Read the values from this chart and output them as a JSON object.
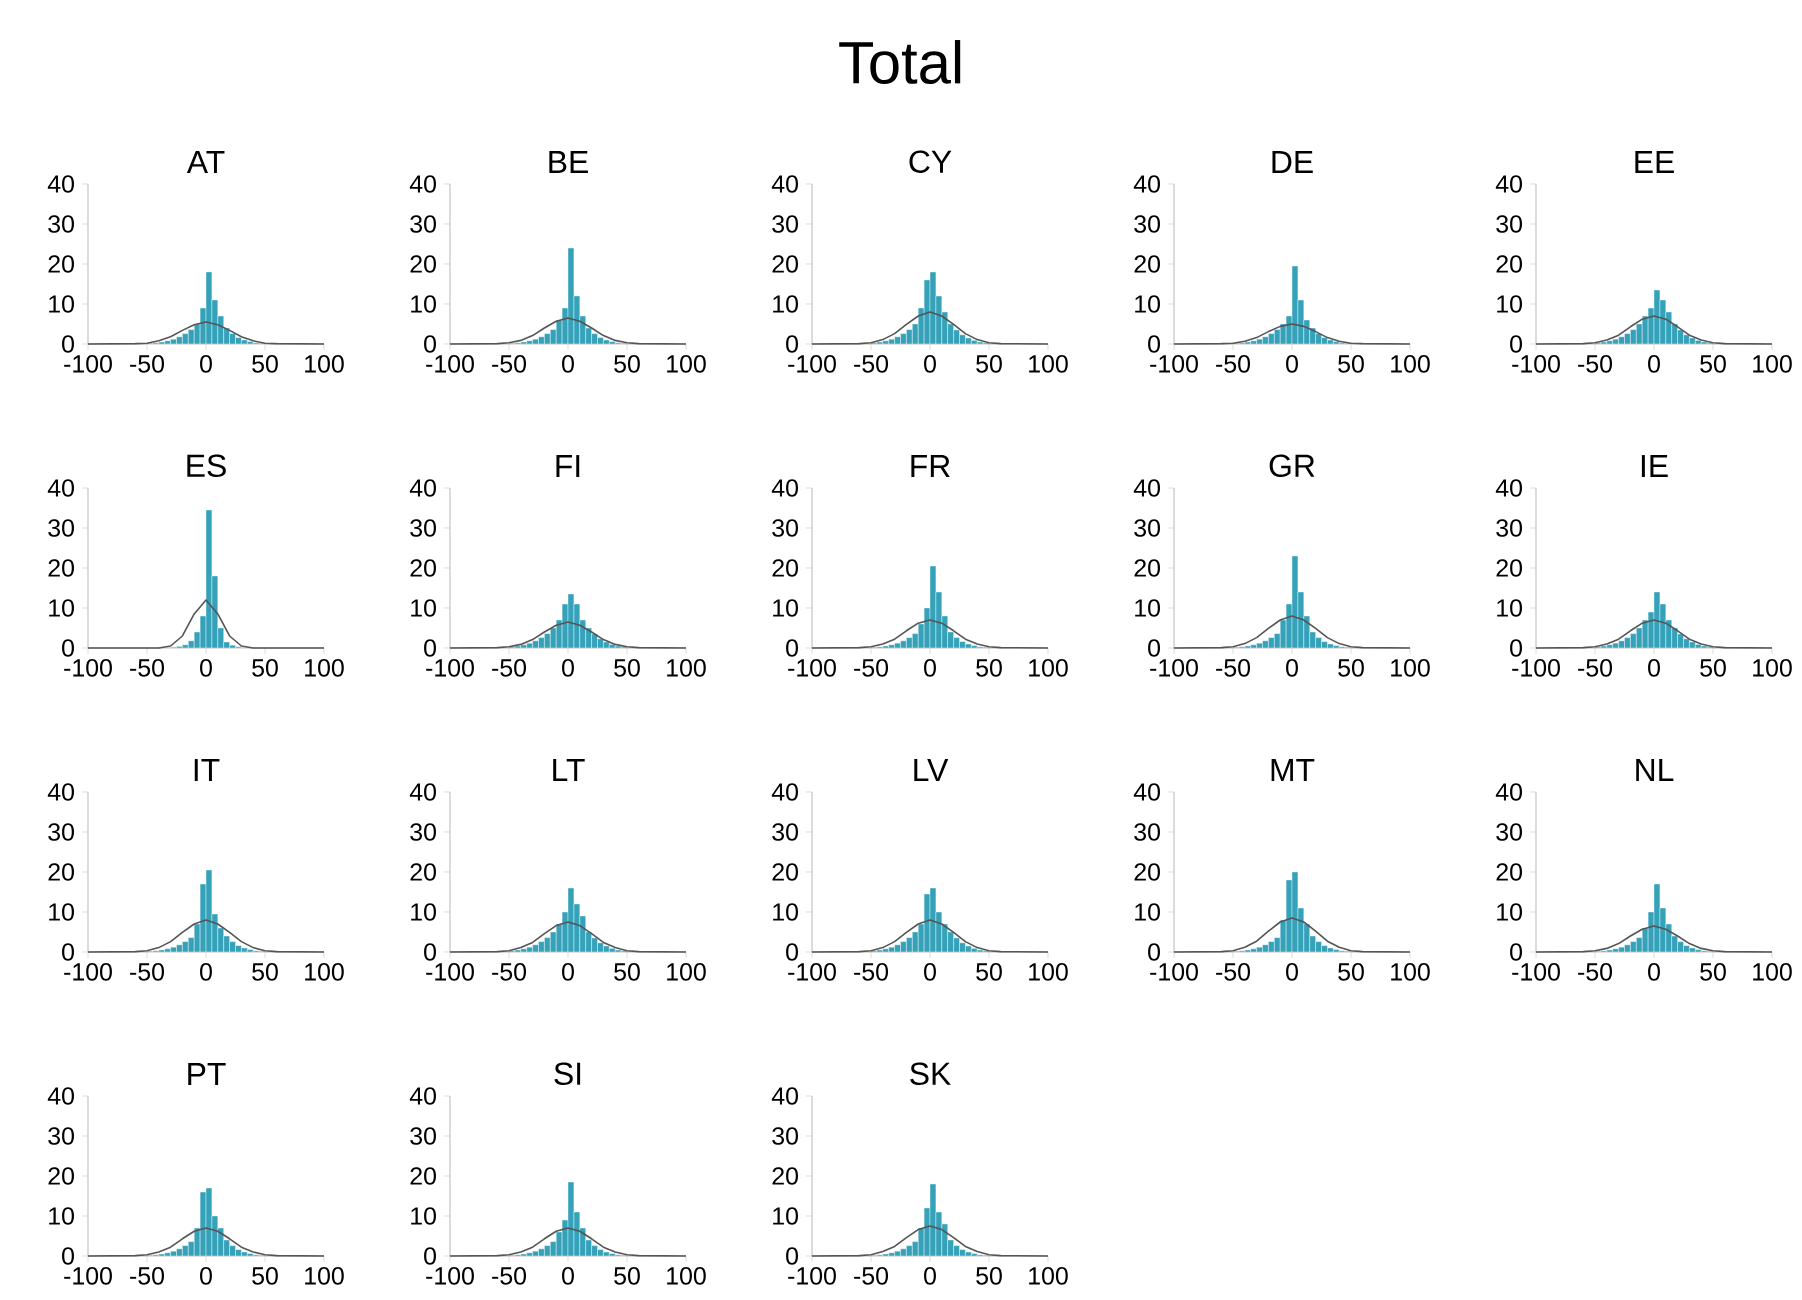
{
  "chart_data": [
    {
      "type": "other",
      "title": "Total"
    },
    {
      "type": "histogram",
      "title": "AT",
      "xlim": [
        -100,
        100
      ],
      "ylim": [
        0,
        40
      ],
      "xticks": [
        -100,
        -50,
        0,
        50,
        100
      ],
      "yticks": [
        0,
        10,
        20,
        30,
        40
      ],
      "series": [
        {
          "type": "histogram",
          "color": "#35a2ba",
          "bins": [
            -50,
            -45,
            -40,
            -35,
            -30,
            -25,
            -20,
            -15,
            -10,
            -5,
            0,
            5,
            10,
            15,
            20,
            25,
            30,
            35,
            40,
            45,
            50
          ],
          "values": [
            0.2,
            0.3,
            0.5,
            0.8,
            1.2,
            1.8,
            2.6,
            3.6,
            5,
            9,
            18,
            11,
            7,
            4,
            2.6,
            1.6,
            1,
            0.6,
            0.3,
            0.2
          ]
        },
        {
          "type": "line",
          "color": "#555555",
          "x": [
            -100,
            -60,
            -50,
            -40,
            -30,
            -20,
            -10,
            0,
            10,
            20,
            30,
            40,
            50,
            60,
            100
          ],
          "values": [
            0,
            0.1,
            0.2,
            0.8,
            1.8,
            3.4,
            4.8,
            5.5,
            4.8,
            3.4,
            1.8,
            0.8,
            0.2,
            0.1,
            0
          ]
        }
      ]
    },
    {
      "type": "histogram",
      "title": "BE",
      "xlim": [
        -100,
        100
      ],
      "ylim": [
        0,
        40
      ],
      "xticks": [
        -100,
        -50,
        0,
        50,
        100
      ],
      "yticks": [
        0,
        10,
        20,
        30,
        40
      ],
      "series": [
        {
          "type": "histogram",
          "color": "#35a2ba",
          "bins": [
            -50,
            -45,
            -40,
            -35,
            -30,
            -25,
            -20,
            -15,
            -10,
            -5,
            0,
            5,
            10,
            15,
            20,
            25,
            30,
            35,
            40,
            45,
            50
          ],
          "values": [
            0.2,
            0.3,
            0.5,
            0.8,
            1.2,
            1.8,
            2.6,
            3.6,
            6,
            9,
            24,
            12,
            7,
            4,
            2.6,
            1.6,
            1,
            0.6,
            0.3,
            0.2
          ]
        },
        {
          "type": "line",
          "color": "#555555",
          "x": [
            -100,
            -60,
            -50,
            -40,
            -30,
            -20,
            -10,
            0,
            10,
            20,
            30,
            40,
            50,
            60,
            100
          ],
          "values": [
            0,
            0.1,
            0.3,
            0.9,
            2.1,
            4.0,
            5.7,
            6.5,
            5.7,
            4.0,
            2.1,
            0.9,
            0.3,
            0.1,
            0
          ]
        }
      ]
    },
    {
      "type": "histogram",
      "title": "CY",
      "xlim": [
        -100,
        100
      ],
      "ylim": [
        0,
        40
      ],
      "xticks": [
        -100,
        -50,
        0,
        50,
        100
      ],
      "yticks": [
        0,
        10,
        20,
        30,
        40
      ],
      "series": [
        {
          "type": "histogram",
          "color": "#35a2ba",
          "bins": [
            -50,
            -45,
            -40,
            -35,
            -30,
            -25,
            -20,
            -15,
            -10,
            -5,
            0,
            5,
            10,
            15,
            20,
            25,
            30,
            35,
            40,
            45,
            50
          ],
          "values": [
            0.3,
            0.5,
            0.8,
            1.2,
            1.8,
            2.6,
            3.6,
            5,
            9,
            16,
            18,
            12,
            8,
            5,
            3.5,
            2.3,
            1.5,
            0.9,
            0.5,
            0.3
          ]
        },
        {
          "type": "line",
          "color": "#555555",
          "x": [
            -100,
            -60,
            -50,
            -40,
            -30,
            -20,
            -10,
            0,
            10,
            20,
            30,
            40,
            50,
            60,
            100
          ],
          "values": [
            0,
            0.1,
            0.3,
            1.1,
            2.6,
            4.9,
            7.0,
            8,
            7.0,
            4.9,
            2.6,
            1.1,
            0.3,
            0.1,
            0
          ]
        }
      ]
    },
    {
      "type": "histogram",
      "title": "DE",
      "xlim": [
        -100,
        100
      ],
      "ylim": [
        0,
        40
      ],
      "xticks": [
        -100,
        -50,
        0,
        50,
        100
      ],
      "yticks": [
        0,
        10,
        20,
        30,
        40
      ],
      "series": [
        {
          "type": "histogram",
          "color": "#35a2ba",
          "bins": [
            -50,
            -45,
            -40,
            -35,
            -30,
            -25,
            -20,
            -15,
            -10,
            -5,
            0,
            5,
            10,
            15,
            20,
            25,
            30,
            35,
            40,
            45,
            50
          ],
          "values": [
            0.2,
            0.3,
            0.5,
            0.8,
            1.2,
            1.8,
            2.6,
            3.6,
            5,
            7,
            19.5,
            11,
            6,
            4,
            2.6,
            1.6,
            1,
            0.6,
            0.3,
            0.2
          ]
        },
        {
          "type": "line",
          "color": "#555555",
          "x": [
            -100,
            -60,
            -50,
            -40,
            -30,
            -20,
            -10,
            0,
            10,
            20,
            30,
            40,
            50,
            60,
            100
          ],
          "values": [
            0,
            0.1,
            0.2,
            0.7,
            1.6,
            3.1,
            4.4,
            5,
            4.4,
            3.1,
            1.6,
            0.7,
            0.2,
            0.1,
            0
          ]
        }
      ]
    },
    {
      "type": "histogram",
      "title": "EE",
      "xlim": [
        -100,
        100
      ],
      "ylim": [
        0,
        40
      ],
      "xticks": [
        -100,
        -50,
        0,
        50,
        100
      ],
      "yticks": [
        0,
        10,
        20,
        30,
        40
      ],
      "series": [
        {
          "type": "histogram",
          "color": "#35a2ba",
          "bins": [
            -50,
            -45,
            -40,
            -35,
            -30,
            -25,
            -20,
            -15,
            -10,
            -5,
            0,
            5,
            10,
            15,
            20,
            25,
            30,
            35,
            40,
            45,
            50
          ],
          "values": [
            0.3,
            0.5,
            0.8,
            1.2,
            1.8,
            2.6,
            3.6,
            5,
            7,
            9,
            13.5,
            11,
            8,
            5,
            3.5,
            2.3,
            1.5,
            0.9,
            0.5,
            0.3
          ]
        },
        {
          "type": "line",
          "color": "#555555",
          "x": [
            -100,
            -60,
            -50,
            -40,
            -30,
            -20,
            -10,
            0,
            10,
            20,
            30,
            40,
            50,
            60,
            100
          ],
          "values": [
            0,
            0.1,
            0.3,
            1.0,
            2.2,
            4.3,
            6.2,
            7,
            6.2,
            4.3,
            2.2,
            1.0,
            0.3,
            0.1,
            0
          ]
        }
      ]
    },
    {
      "type": "histogram",
      "title": "ES",
      "xlim": [
        -100,
        100
      ],
      "ylim": [
        0,
        40
      ],
      "xticks": [
        -100,
        -50,
        0,
        50,
        100
      ],
      "yticks": [
        0,
        10,
        20,
        30,
        40
      ],
      "series": [
        {
          "type": "histogram",
          "color": "#35a2ba",
          "bins": [
            -35,
            -30,
            -25,
            -20,
            -15,
            -10,
            -5,
            0,
            5,
            10,
            15,
            20,
            25,
            30,
            35
          ],
          "values": [
            0.1,
            0.2,
            0.4,
            0.8,
            1.8,
            4,
            8,
            34.5,
            18,
            5,
            1.5,
            0.7,
            0.3,
            0.1
          ]
        },
        {
          "type": "line",
          "color": "#555555",
          "x": [
            -100,
            -60,
            -50,
            -40,
            -30,
            -20,
            -10,
            0,
            10,
            20,
            30,
            40,
            50,
            60,
            100
          ],
          "values": [
            0,
            0,
            0,
            0,
            0.5,
            3,
            8.5,
            12,
            8.5,
            3,
            0.5,
            0,
            0,
            0,
            0
          ]
        }
      ]
    },
    {
      "type": "histogram",
      "title": "FI",
      "xlim": [
        -100,
        100
      ],
      "ylim": [
        0,
        40
      ],
      "xticks": [
        -100,
        -50,
        0,
        50,
        100
      ],
      "yticks": [
        0,
        10,
        20,
        30,
        40
      ],
      "series": [
        {
          "type": "histogram",
          "color": "#35a2ba",
          "bins": [
            -50,
            -45,
            -40,
            -35,
            -30,
            -25,
            -20,
            -15,
            -10,
            -5,
            0,
            5,
            10,
            15,
            20,
            25,
            30,
            35,
            40,
            45,
            50
          ],
          "values": [
            0.3,
            0.5,
            0.8,
            1.2,
            1.8,
            2.6,
            3.6,
            5,
            7,
            11,
            13.5,
            11,
            7,
            5,
            3.5,
            2.3,
            1.5,
            0.9,
            0.5,
            0.3
          ]
        },
        {
          "type": "line",
          "color": "#555555",
          "x": [
            -100,
            -60,
            -50,
            -40,
            -30,
            -20,
            -10,
            0,
            10,
            20,
            30,
            40,
            50,
            60,
            100
          ],
          "values": [
            0,
            0.1,
            0.3,
            0.9,
            2.1,
            4.0,
            5.7,
            6.5,
            5.7,
            4.0,
            2.1,
            0.9,
            0.3,
            0.1,
            0
          ]
        }
      ]
    },
    {
      "type": "histogram",
      "title": "FR",
      "xlim": [
        -100,
        100
      ],
      "ylim": [
        0,
        40
      ],
      "xticks": [
        -100,
        -50,
        0,
        50,
        100
      ],
      "yticks": [
        0,
        10,
        20,
        30,
        40
      ],
      "series": [
        {
          "type": "histogram",
          "color": "#35a2ba",
          "bins": [
            -50,
            -45,
            -40,
            -35,
            -30,
            -25,
            -20,
            -15,
            -10,
            -5,
            0,
            5,
            10,
            15,
            20,
            25,
            30,
            35,
            40,
            45,
            50
          ],
          "values": [
            0.2,
            0.3,
            0.5,
            0.8,
            1.2,
            1.8,
            2.6,
            3.6,
            6,
            10,
            20.5,
            14,
            8,
            4,
            2.6,
            1.6,
            1,
            0.6,
            0.3,
            0.2
          ]
        },
        {
          "type": "line",
          "color": "#555555",
          "x": [
            -100,
            -60,
            -50,
            -40,
            -30,
            -20,
            -10,
            0,
            10,
            20,
            30,
            40,
            50,
            60,
            100
          ],
          "values": [
            0,
            0.1,
            0.3,
            1.0,
            2.2,
            4.3,
            6.2,
            7,
            6.2,
            4.3,
            2.2,
            1.0,
            0.3,
            0.1,
            0
          ]
        }
      ]
    },
    {
      "type": "histogram",
      "title": "GR",
      "xlim": [
        -100,
        100
      ],
      "ylim": [
        0,
        40
      ],
      "xticks": [
        -100,
        -50,
        0,
        50,
        100
      ],
      "yticks": [
        0,
        10,
        20,
        30,
        40
      ],
      "series": [
        {
          "type": "histogram",
          "color": "#35a2ba",
          "bins": [
            -50,
            -45,
            -40,
            -35,
            -30,
            -25,
            -20,
            -15,
            -10,
            -5,
            0,
            5,
            10,
            15,
            20,
            25,
            30,
            35,
            40,
            45,
            50
          ],
          "values": [
            0.2,
            0.3,
            0.5,
            0.8,
            1.2,
            1.8,
            2.6,
            3.6,
            7,
            11,
            23,
            14,
            8,
            4,
            2.6,
            1.6,
            1,
            0.6,
            0.3,
            0.2
          ]
        },
        {
          "type": "line",
          "color": "#555555",
          "x": [
            -100,
            -60,
            -50,
            -40,
            -30,
            -20,
            -10,
            0,
            10,
            20,
            30,
            40,
            50,
            60,
            100
          ],
          "values": [
            0,
            0.1,
            0.3,
            1.1,
            2.6,
            4.9,
            7.0,
            8,
            7.0,
            4.9,
            2.6,
            1.1,
            0.3,
            0.1,
            0
          ]
        }
      ]
    },
    {
      "type": "histogram",
      "title": "IE",
      "xlim": [
        -100,
        100
      ],
      "ylim": [
        0,
        40
      ],
      "xticks": [
        -100,
        -50,
        0,
        50,
        100
      ],
      "yticks": [
        0,
        10,
        20,
        30,
        40
      ],
      "series": [
        {
          "type": "histogram",
          "color": "#35a2ba",
          "bins": [
            -50,
            -45,
            -40,
            -35,
            -30,
            -25,
            -20,
            -15,
            -10,
            -5,
            0,
            5,
            10,
            15,
            20,
            25,
            30,
            35,
            40,
            45,
            50
          ],
          "values": [
            0.3,
            0.5,
            0.8,
            1.2,
            1.8,
            2.6,
            3.6,
            5,
            7,
            9,
            14,
            11,
            7,
            5,
            3.5,
            2.3,
            1.5,
            0.9,
            0.5,
            0.3
          ]
        },
        {
          "type": "line",
          "color": "#555555",
          "x": [
            -100,
            -60,
            -50,
            -40,
            -30,
            -20,
            -10,
            0,
            10,
            20,
            30,
            40,
            50,
            60,
            100
          ],
          "values": [
            0,
            0.1,
            0.3,
            1.0,
            2.2,
            4.3,
            6.2,
            7,
            6.2,
            4.3,
            2.2,
            1.0,
            0.3,
            0.1,
            0
          ]
        }
      ]
    },
    {
      "type": "histogram",
      "title": "IT",
      "xlim": [
        -100,
        100
      ],
      "ylim": [
        0,
        40
      ],
      "xticks": [
        -100,
        -50,
        0,
        50,
        100
      ],
      "yticks": [
        0,
        10,
        20,
        30,
        40
      ],
      "series": [
        {
          "type": "histogram",
          "color": "#35a2ba",
          "bins": [
            -50,
            -45,
            -40,
            -35,
            -30,
            -25,
            -20,
            -15,
            -10,
            -5,
            0,
            5,
            10,
            15,
            20,
            25,
            30,
            35,
            40,
            45,
            50
          ],
          "values": [
            0.2,
            0.3,
            0.5,
            0.8,
            1.2,
            1.8,
            2.6,
            3.6,
            7,
            17,
            20.5,
            9.5,
            6,
            4,
            2.6,
            1.6,
            1,
            0.6,
            0.3,
            0.2
          ]
        },
        {
          "type": "line",
          "color": "#555555",
          "x": [
            -100,
            -60,
            -50,
            -40,
            -30,
            -20,
            -10,
            0,
            10,
            20,
            30,
            40,
            50,
            60,
            100
          ],
          "values": [
            0,
            0.1,
            0.3,
            1.1,
            2.6,
            4.9,
            7.0,
            8,
            7.0,
            4.9,
            2.6,
            1.1,
            0.3,
            0.1,
            0
          ]
        }
      ]
    },
    {
      "type": "histogram",
      "title": "LT",
      "xlim": [
        -100,
        100
      ],
      "ylim": [
        0,
        40
      ],
      "xticks": [
        -100,
        -50,
        0,
        50,
        100
      ],
      "yticks": [
        0,
        10,
        20,
        30,
        40
      ],
      "series": [
        {
          "type": "histogram",
          "color": "#35a2ba",
          "bins": [
            -50,
            -45,
            -40,
            -35,
            -30,
            -25,
            -20,
            -15,
            -10,
            -5,
            0,
            5,
            10,
            15,
            20,
            25,
            30,
            35,
            40,
            45,
            50
          ],
          "values": [
            0.3,
            0.5,
            0.8,
            1.2,
            1.8,
            2.6,
            3.6,
            5,
            7,
            10,
            16,
            12,
            9,
            5,
            3.5,
            2.3,
            1.5,
            0.9,
            0.5,
            0.3
          ]
        },
        {
          "type": "line",
          "color": "#555555",
          "x": [
            -100,
            -60,
            -50,
            -40,
            -30,
            -20,
            -10,
            0,
            10,
            20,
            30,
            40,
            50,
            60,
            100
          ],
          "values": [
            0,
            0.1,
            0.3,
            1.1,
            2.4,
            4.6,
            6.6,
            7.5,
            6.6,
            4.6,
            2.4,
            1.1,
            0.3,
            0.1,
            0
          ]
        }
      ]
    },
    {
      "type": "histogram",
      "title": "LV",
      "xlim": [
        -100,
        100
      ],
      "ylim": [
        0,
        40
      ],
      "xticks": [
        -100,
        -50,
        0,
        50,
        100
      ],
      "yticks": [
        0,
        10,
        20,
        30,
        40
      ],
      "series": [
        {
          "type": "histogram",
          "color": "#35a2ba",
          "bins": [
            -50,
            -45,
            -40,
            -35,
            -30,
            -25,
            -20,
            -15,
            -10,
            -5,
            0,
            5,
            10,
            15,
            20,
            25,
            30,
            35,
            40,
            45,
            50
          ],
          "values": [
            0.3,
            0.5,
            0.8,
            1.2,
            1.8,
            2.6,
            3.6,
            5,
            7,
            14.5,
            16,
            10,
            7,
            5,
            3.5,
            2.3,
            1.5,
            0.9,
            0.5,
            0.3
          ]
        },
        {
          "type": "line",
          "color": "#555555",
          "x": [
            -100,
            -60,
            -50,
            -40,
            -30,
            -20,
            -10,
            0,
            10,
            20,
            30,
            40,
            50,
            60,
            100
          ],
          "values": [
            0,
            0.1,
            0.3,
            1.1,
            2.6,
            4.9,
            7.0,
            8,
            7.0,
            4.9,
            2.6,
            1.1,
            0.3,
            0.1,
            0
          ]
        }
      ]
    },
    {
      "type": "histogram",
      "title": "MT",
      "xlim": [
        -100,
        100
      ],
      "ylim": [
        0,
        40
      ],
      "xticks": [
        -100,
        -50,
        0,
        50,
        100
      ],
      "yticks": [
        0,
        10,
        20,
        30,
        40
      ],
      "series": [
        {
          "type": "histogram",
          "color": "#35a2ba",
          "bins": [
            -50,
            -45,
            -40,
            -35,
            -30,
            -25,
            -20,
            -15,
            -10,
            -5,
            0,
            5,
            10,
            15,
            20,
            25,
            30,
            35,
            40,
            45,
            50
          ],
          "values": [
            0.2,
            0.3,
            0.5,
            0.8,
            1.2,
            1.8,
            2.6,
            3.6,
            8,
            18,
            20,
            11,
            7,
            4,
            2.6,
            1.6,
            1,
            0.6,
            0.3,
            0.2
          ]
        },
        {
          "type": "line",
          "color": "#555555",
          "x": [
            -100,
            -60,
            -50,
            -40,
            -30,
            -20,
            -10,
            0,
            10,
            20,
            30,
            40,
            50,
            60,
            100
          ],
          "values": [
            0,
            0.1,
            0.3,
            1.2,
            2.7,
            5.2,
            7.5,
            8.5,
            7.5,
            5.2,
            2.7,
            1.2,
            0.3,
            0.1,
            0
          ]
        }
      ]
    },
    {
      "type": "histogram",
      "title": "NL",
      "xlim": [
        -100,
        100
      ],
      "ylim": [
        0,
        40
      ],
      "xticks": [
        -100,
        -50,
        0,
        50,
        100
      ],
      "yticks": [
        0,
        10,
        20,
        30,
        40
      ],
      "series": [
        {
          "type": "histogram",
          "color": "#35a2ba",
          "bins": [
            -50,
            -45,
            -40,
            -35,
            -30,
            -25,
            -20,
            -15,
            -10,
            -5,
            0,
            5,
            10,
            15,
            20,
            25,
            30,
            35,
            40,
            45,
            50
          ],
          "values": [
            0.2,
            0.3,
            0.5,
            0.8,
            1.2,
            1.8,
            2.6,
            3.6,
            6,
            10,
            17,
            11,
            7,
            4,
            2.6,
            1.6,
            1,
            0.6,
            0.3,
            0.2
          ]
        },
        {
          "type": "line",
          "color": "#555555",
          "x": [
            -100,
            -60,
            -50,
            -40,
            -30,
            -20,
            -10,
            0,
            10,
            20,
            30,
            40,
            50,
            60,
            100
          ],
          "values": [
            0,
            0.1,
            0.3,
            0.9,
            2.1,
            4.0,
            5.7,
            6.5,
            5.7,
            4.0,
            2.1,
            0.9,
            0.3,
            0.1,
            0
          ]
        }
      ]
    },
    {
      "type": "histogram",
      "title": "PT",
      "xlim": [
        -100,
        100
      ],
      "ylim": [
        0,
        40
      ],
      "xticks": [
        -100,
        -50,
        0,
        50,
        100
      ],
      "yticks": [
        0,
        10,
        20,
        30,
        40
      ],
      "series": [
        {
          "type": "histogram",
          "color": "#35a2ba",
          "bins": [
            -50,
            -45,
            -40,
            -35,
            -30,
            -25,
            -20,
            -15,
            -10,
            -5,
            0,
            5,
            10,
            15,
            20,
            25,
            30,
            35,
            40,
            45,
            50
          ],
          "values": [
            0.2,
            0.3,
            0.5,
            0.8,
            1.2,
            1.8,
            2.6,
            3.6,
            7,
            16,
            17,
            10,
            7,
            4,
            2.6,
            1.6,
            1,
            0.6,
            0.3,
            0.2
          ]
        },
        {
          "type": "line",
          "color": "#555555",
          "x": [
            -100,
            -60,
            -50,
            -40,
            -30,
            -20,
            -10,
            0,
            10,
            20,
            30,
            40,
            50,
            60,
            100
          ],
          "values": [
            0,
            0.1,
            0.3,
            1.0,
            2.2,
            4.3,
            6.2,
            7,
            6.2,
            4.3,
            2.2,
            1.0,
            0.3,
            0.1,
            0
          ]
        }
      ]
    },
    {
      "type": "histogram",
      "title": "SI",
      "xlim": [
        -100,
        100
      ],
      "ylim": [
        0,
        40
      ],
      "xticks": [
        -100,
        -50,
        0,
        50,
        100
      ],
      "yticks": [
        0,
        10,
        20,
        30,
        40
      ],
      "series": [
        {
          "type": "histogram",
          "color": "#35a2ba",
          "bins": [
            -50,
            -45,
            -40,
            -35,
            -30,
            -25,
            -20,
            -15,
            -10,
            -5,
            0,
            5,
            10,
            15,
            20,
            25,
            30,
            35,
            40,
            45,
            50
          ],
          "values": [
            0.2,
            0.3,
            0.5,
            0.8,
            1.2,
            1.8,
            2.6,
            3.6,
            6,
            9,
            18.5,
            11,
            7,
            4,
            2.6,
            1.6,
            1,
            0.6,
            0.3,
            0.2
          ]
        },
        {
          "type": "line",
          "color": "#555555",
          "x": [
            -100,
            -60,
            -50,
            -40,
            -30,
            -20,
            -10,
            0,
            10,
            20,
            30,
            40,
            50,
            60,
            100
          ],
          "values": [
            0,
            0.1,
            0.3,
            1.0,
            2.2,
            4.3,
            6.2,
            7,
            6.2,
            4.3,
            2.2,
            1.0,
            0.3,
            0.1,
            0
          ]
        }
      ]
    },
    {
      "type": "histogram",
      "title": "SK",
      "xlim": [
        -100,
        100
      ],
      "ylim": [
        0,
        40
      ],
      "xticks": [
        -100,
        -50,
        0,
        50,
        100
      ],
      "yticks": [
        0,
        10,
        20,
        30,
        40
      ],
      "series": [
        {
          "type": "histogram",
          "color": "#35a2ba",
          "bins": [
            -50,
            -45,
            -40,
            -35,
            -30,
            -25,
            -20,
            -15,
            -10,
            -5,
            0,
            5,
            10,
            15,
            20,
            25,
            30,
            35,
            40,
            45,
            50
          ],
          "values": [
            0.2,
            0.3,
            0.5,
            0.8,
            1.2,
            1.8,
            2.6,
            3.6,
            7,
            12,
            18,
            11,
            8,
            4,
            2.6,
            1.6,
            1,
            0.6,
            0.3,
            0.2
          ]
        },
        {
          "type": "line",
          "color": "#555555",
          "x": [
            -100,
            -60,
            -50,
            -40,
            -30,
            -20,
            -10,
            0,
            10,
            20,
            30,
            40,
            50,
            60,
            100
          ],
          "values": [
            0,
            0.1,
            0.3,
            1.1,
            2.4,
            4.6,
            6.6,
            7.5,
            6.6,
            4.6,
            2.4,
            1.1,
            0.3,
            0.1,
            0
          ]
        }
      ]
    }
  ]
}
